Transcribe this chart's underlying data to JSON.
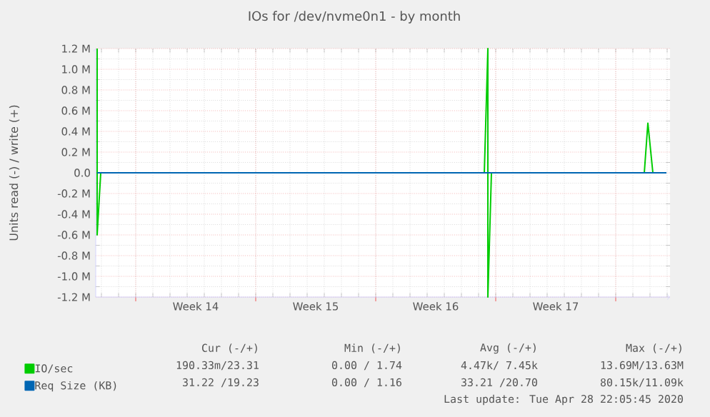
{
  "chart_data": {
    "type": "line",
    "title": "IOs for /dev/nvme0n1 - by month",
    "ylabel": "Units read (-) / write (+)",
    "xlim": [
      "2020-03-27T16:00",
      "2020-04-30T04:00"
    ],
    "ylim": [
      -1200000,
      1200000
    ],
    "xticks": [
      {
        "value": "2020-03-30T00:00",
        "label": null
      },
      {
        "value": "2020-04-02T12:00",
        "label": "Week 14"
      },
      {
        "value": "2020-04-06T00:00",
        "label": null
      },
      {
        "value": "2020-04-09T12:00",
        "label": "Week 15"
      },
      {
        "value": "2020-04-13T00:00",
        "label": null
      },
      {
        "value": "2020-04-16T12:00",
        "label": "Week 16"
      },
      {
        "value": "2020-04-20T00:00",
        "label": null
      },
      {
        "value": "2020-04-23T12:00",
        "label": "Week 17"
      },
      {
        "value": "2020-04-27T00:00",
        "label": null
      }
    ],
    "yticks": [
      {
        "value": -1200000,
        "label": "-1.2 M"
      },
      {
        "value": -1000000,
        "label": "-1.0 M"
      },
      {
        "value": -800000,
        "label": "-0.8 M"
      },
      {
        "value": -600000,
        "label": "-0.6 M"
      },
      {
        "value": -400000,
        "label": "-0.4 M"
      },
      {
        "value": -200000,
        "label": "-0.2 M"
      },
      {
        "value": 0,
        "label": "0.0"
      },
      {
        "value": 200000,
        "label": "0.2 M"
      },
      {
        "value": 400000,
        "label": "0.4 M"
      },
      {
        "value": 600000,
        "label": "0.6 M"
      },
      {
        "value": 800000,
        "label": "0.8 M"
      },
      {
        "value": 1000000,
        "label": "1.0 M"
      },
      {
        "value": 1200000,
        "label": "1.2 M"
      }
    ],
    "grid": true,
    "legend": "bottom",
    "series": [
      {
        "name": "IO/sec",
        "color": "#00cc00",
        "x": [
          "2020-03-27T18:00",
          "2020-03-27T18:00",
          "2020-03-27T23:00",
          "2020-04-10T00:00",
          "2020-04-19T08:00",
          "2020-04-19T13:00",
          "2020-04-19T13:00",
          "2020-04-19T18:00",
          "2020-04-24T00:00",
          "2020-04-28T16:00",
          "2020-04-28T21:00",
          "2020-04-29T04:00"
        ],
        "values": [
          1200000,
          -600000,
          0,
          null,
          0,
          1200000,
          -1200000,
          0,
          null,
          0,
          480000,
          0
        ]
      },
      {
        "name": "Req Size (KB)",
        "color": "#0066b3",
        "x": [
          "2020-03-27T18:00",
          "2020-04-29T23:00"
        ],
        "values": [
          0,
          0
        ]
      }
    ],
    "annotations": [
      "Cur (-/+)",
      "Min (-/+)",
      "Avg (-/+)",
      "Max (-/+)",
      "190.33m/23.31",
      "0.00 / 1.74",
      "4.47k/ 7.45k",
      "13.69M/13.63M",
      "31.22 /19.23",
      "0.00 / 1.16",
      "33.21 /20.70",
      "80.15k/11.09k",
      "Last update: Tue Apr 28 22:05:45 2020"
    ]
  }
}
